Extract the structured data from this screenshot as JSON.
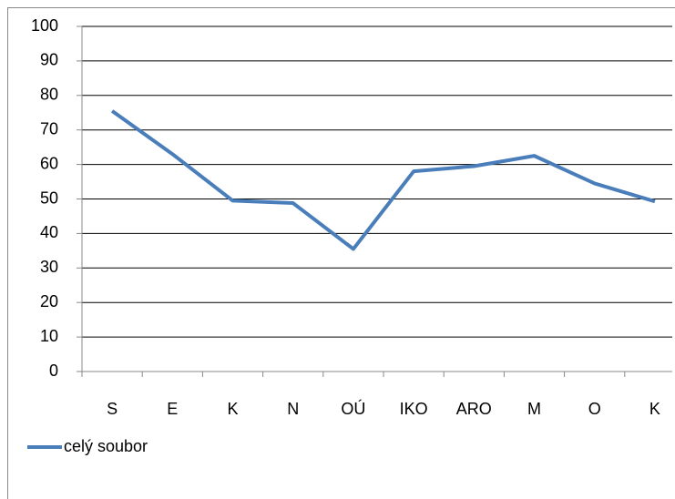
{
  "chart_data": {
    "type": "line",
    "categories": [
      "S",
      "E",
      "K",
      "N",
      "OÚ",
      "IKO",
      "ARO",
      "M",
      "O",
      "K"
    ],
    "series": [
      {
        "name": "celý soubor",
        "color": "#4a7ebb",
        "values": [
          75.5,
          63,
          49.5,
          48.8,
          35.5,
          58,
          59.5,
          62.5,
          54.5,
          49.3
        ]
      }
    ],
    "ylim": [
      0,
      100
    ],
    "yticks": [
      0,
      10,
      20,
      30,
      40,
      50,
      60,
      70,
      80,
      90,
      100
    ],
    "grid": true,
    "legend": "bottom-left"
  }
}
